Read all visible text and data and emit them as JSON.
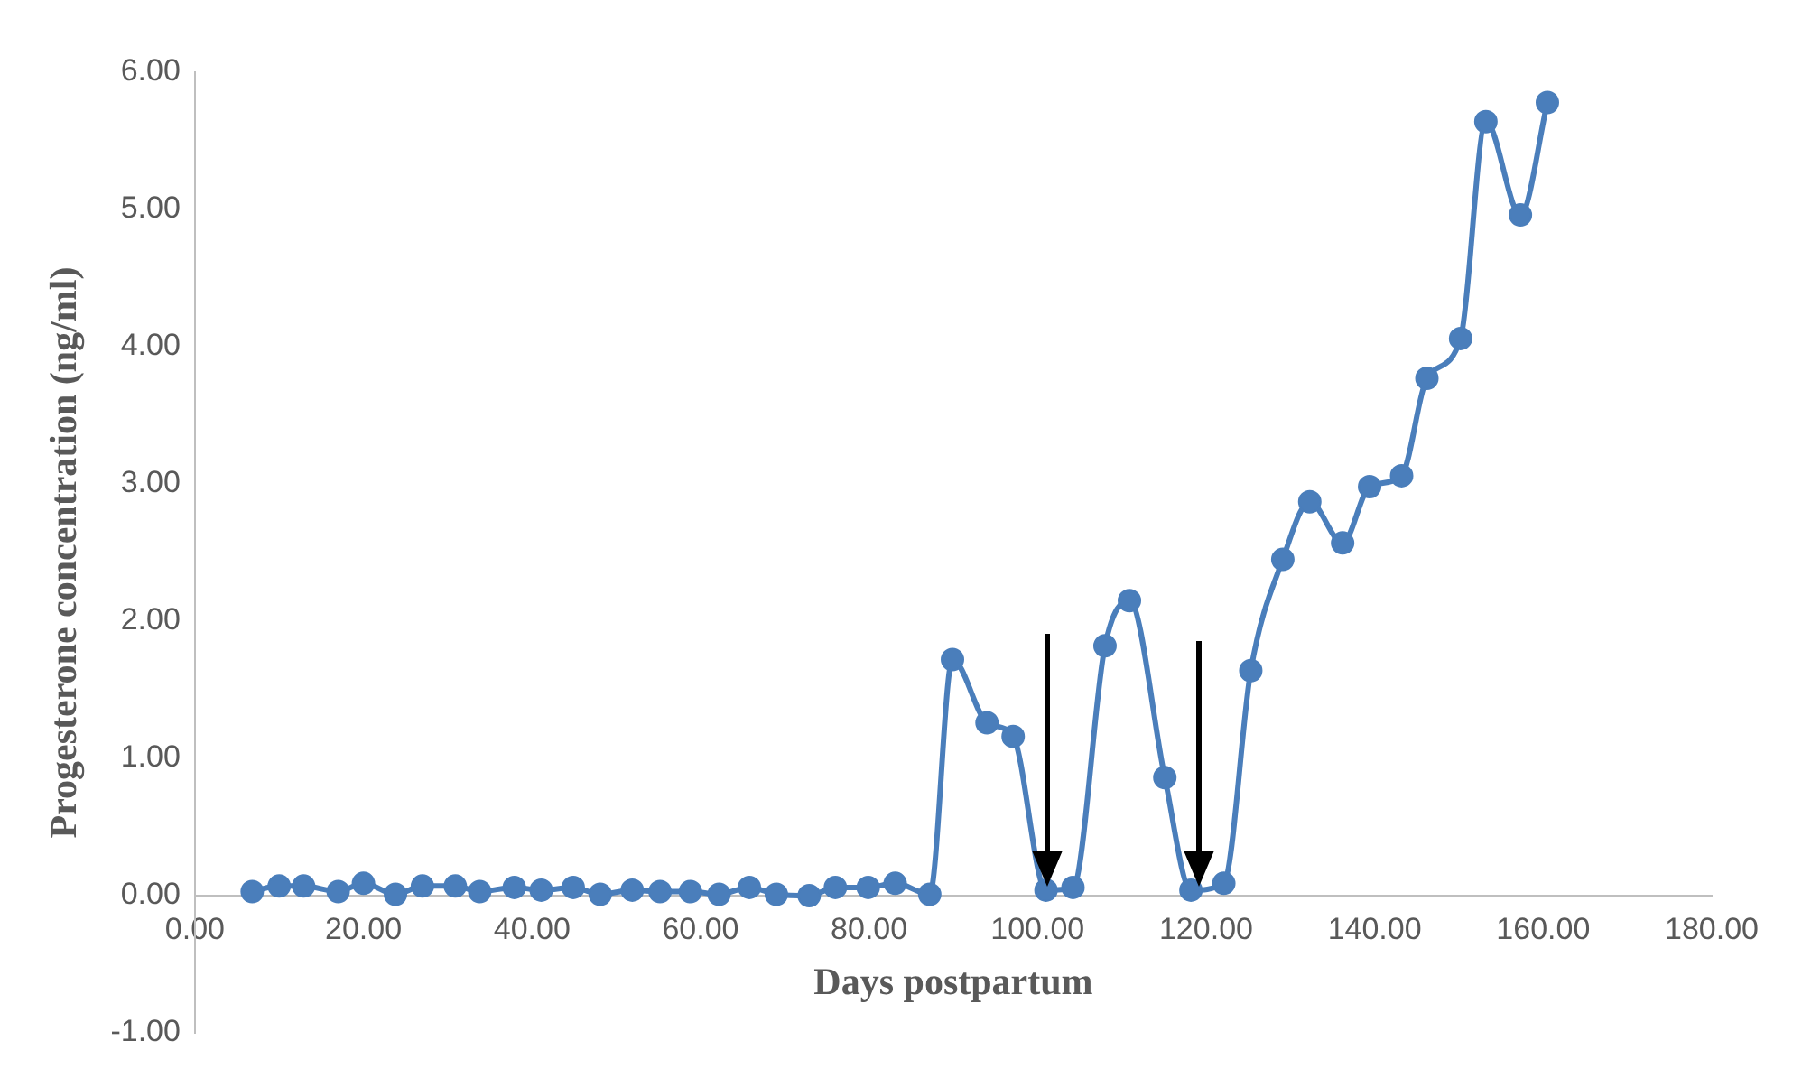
{
  "chart_data": {
    "type": "line",
    "xlabel": "Days postpartum",
    "ylabel": "Progesterone concentration (ng/ml)",
    "xlim": [
      0,
      180
    ],
    "xticks": [
      {
        "value": 0,
        "label": "0.00"
      },
      {
        "value": 20,
        "label": "20.00"
      },
      {
        "value": 40,
        "label": "40.00"
      },
      {
        "value": 60,
        "label": "60.00"
      },
      {
        "value": 80,
        "label": "80.00"
      },
      {
        "value": 100,
        "label": "100.00"
      },
      {
        "value": 120,
        "label": "120.00"
      },
      {
        "value": 140,
        "label": "140.00"
      },
      {
        "value": 160,
        "label": "160.00"
      },
      {
        "value": 180,
        "label": "180.00"
      }
    ],
    "ylim": [
      -1,
      6
    ],
    "yticks": [
      {
        "value": -1,
        "label": "-1.00"
      },
      {
        "value": 0,
        "label": "0.00"
      },
      {
        "value": 1,
        "label": "1.00"
      },
      {
        "value": 2,
        "label": "2.00"
      },
      {
        "value": 3,
        "label": "3.00"
      },
      {
        "value": 4,
        "label": "4.00"
      },
      {
        "value": 5,
        "label": "5.00"
      },
      {
        "value": 6,
        "label": "6.00"
      }
    ],
    "grid": false,
    "legend": false,
    "marker": "circle",
    "line_style": "solid",
    "series": [
      {
        "color": "#4a7ebb",
        "x": [
          6.8,
          10.0,
          12.9,
          17.0,
          20.0,
          23.8,
          27.0,
          30.9,
          33.8,
          37.9,
          41.1,
          44.9,
          48.1,
          51.9,
          55.2,
          58.8,
          62.2,
          65.8,
          69.0,
          72.9,
          76.0,
          79.9,
          83.1,
          87.2,
          89.9,
          94.0,
          97.1,
          101.0,
          104.2,
          108.0,
          110.9,
          115.1,
          118.2,
          122.1,
          125.3,
          129.1,
          132.3,
          136.2,
          139.4,
          143.2,
          146.2,
          150.2,
          153.2,
          157.3,
          160.5
        ],
        "values": [
          0.03,
          0.07,
          0.07,
          0.03,
          0.09,
          0.01,
          0.07,
          0.07,
          0.03,
          0.06,
          0.04,
          0.06,
          0.01,
          0.04,
          0.03,
          0.03,
          0.01,
          0.06,
          0.01,
          0.0,
          0.06,
          0.06,
          0.09,
          0.01,
          1.72,
          1.26,
          1.16,
          0.04,
          0.06,
          1.82,
          2.15,
          0.86,
          0.04,
          0.09,
          1.64,
          2.45,
          2.87,
          2.57,
          2.98,
          3.06,
          3.77,
          4.06,
          5.64,
          4.96,
          5.78
        ]
      }
    ]
  }
}
